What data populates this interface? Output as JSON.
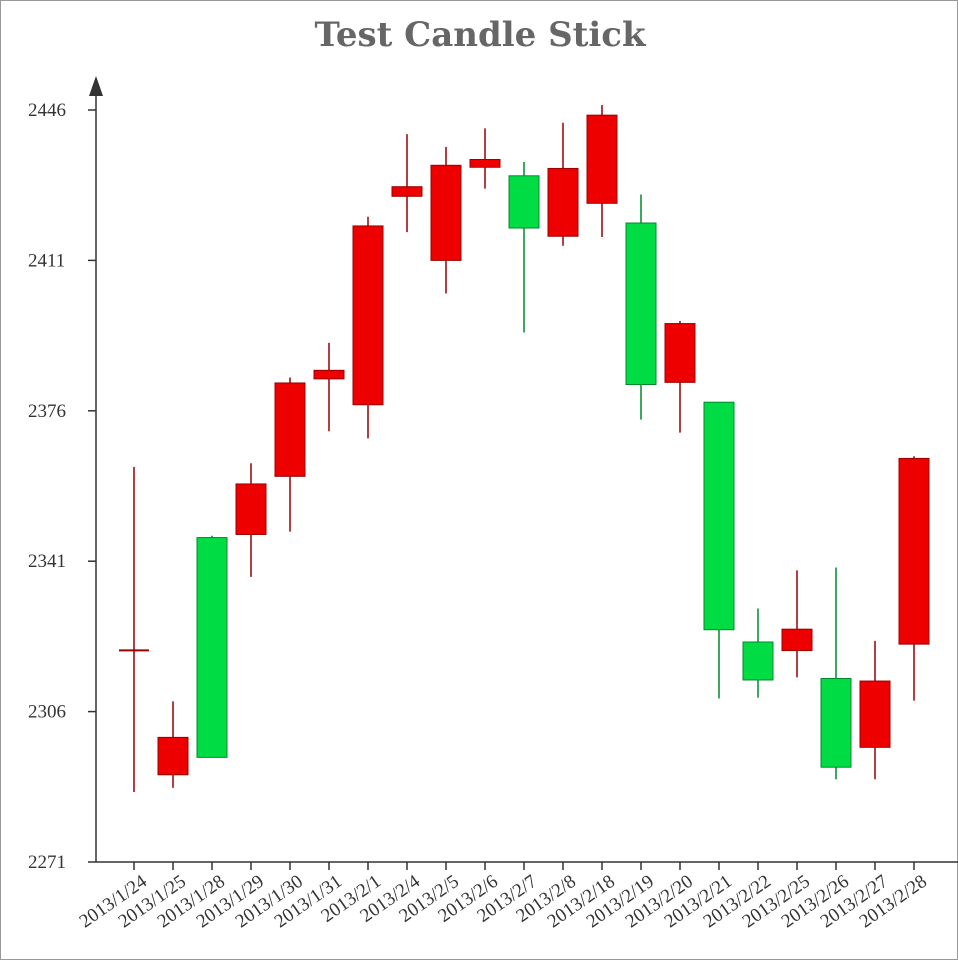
{
  "chart_data": {
    "type": "candlestick",
    "title": "Test Candle Stick",
    "xlabel": "",
    "ylabel": "",
    "ylim": [
      2271,
      2446
    ],
    "yticks": [
      2271,
      2306,
      2341,
      2376,
      2411,
      2446
    ],
    "grid": false,
    "colors": {
      "up": "#00dd44",
      "down": "#ee0000",
      "up_wick": "#008a2b",
      "down_wick": "#990000"
    },
    "categories": [
      "2013/1/24",
      "2013/1/25",
      "2013/1/28",
      "2013/1/29",
      "2013/1/30",
      "2013/1/31",
      "2013/2/1",
      "2013/2/4",
      "2013/2/5",
      "2013/2/6",
      "2013/2/7",
      "2013/2/8",
      "2013/2/18",
      "2013/2/19",
      "2013/2/20",
      "2013/2/21",
      "2013/2/22",
      "2013/2/25",
      "2013/2/26",
      "2013/2/27",
      "2013/2/28"
    ],
    "candles": [
      {
        "date": "2013/1/24",
        "open": 2320.26,
        "close": 2320.26,
        "low": 2287.3,
        "high": 2362.94
      },
      {
        "date": "2013/1/25",
        "open": 2291.3,
        "close": 2300.0,
        "low": 2288.26,
        "high": 2308.38
      },
      {
        "date": "2013/1/28",
        "open": 2346.5,
        "close": 2295.35,
        "low": 2295.35,
        "high": 2346.92
      },
      {
        "date": "2013/1/29",
        "open": 2347.22,
        "close": 2358.98,
        "low": 2337.35,
        "high": 2363.8
      },
      {
        "date": "2013/1/30",
        "open": 2360.75,
        "close": 2382.48,
        "low": 2347.89,
        "high": 2383.76
      },
      {
        "date": "2013/1/31",
        "open": 2383.43,
        "close": 2385.42,
        "low": 2371.23,
        "high": 2391.82
      },
      {
        "date": "2013/2/1",
        "open": 2377.41,
        "close": 2419.02,
        "low": 2369.57,
        "high": 2421.15
      },
      {
        "date": "2013/2/4",
        "open": 2425.92,
        "close": 2428.15,
        "low": 2417.58,
        "high": 2440.38
      },
      {
        "date": "2013/2/5",
        "open": 2411.0,
        "close": 2433.13,
        "low": 2403.3,
        "high": 2437.42
      },
      {
        "date": "2013/2/6",
        "open": 2432.68,
        "close": 2434.48,
        "low": 2427.7,
        "high": 2441.73
      },
      {
        "date": "2013/2/7",
        "open": 2430.69,
        "close": 2418.53,
        "low": 2394.22,
        "high": 2433.89
      },
      {
        "date": "2013/2/8",
        "open": 2416.62,
        "close": 2432.4,
        "low": 2414.4,
        "high": 2443.03
      },
      {
        "date": "2013/2/18",
        "open": 2424.29,
        "close": 2444.8,
        "low": 2416.46,
        "high": 2447.16
      },
      {
        "date": "2013/2/19",
        "open": 2419.7,
        "close": 2382.12,
        "low": 2373.94,
        "high": 2426.34
      },
      {
        "date": "2013/2/20",
        "open": 2382.62,
        "close": 2396.3,
        "low": 2370.92,
        "high": 2396.92
      },
      {
        "date": "2013/2/21",
        "open": 2378.0,
        "close": 2325.05,
        "low": 2309.04,
        "high": 2378.0
      },
      {
        "date": "2013/2/22",
        "open": 2322.2,
        "close": 2313.36,
        "low": 2309.23,
        "high": 2329.99
      },
      {
        "date": "2013/2/25",
        "open": 2320.2,
        "close": 2325.18,
        "low": 2313.98,
        "high": 2338.87
      },
      {
        "date": "2013/2/26",
        "open": 2313.7,
        "close": 2293.06,
        "low": 2290.24,
        "high": 2339.53
      },
      {
        "date": "2013/2/27",
        "open": 2297.69,
        "close": 2313.11,
        "low": 2290.25,
        "high": 2322.46
      },
      {
        "date": "2013/2/28",
        "open": 2321.7,
        "close": 2364.92,
        "low": 2308.54,
        "high": 2365.43
      }
    ]
  }
}
